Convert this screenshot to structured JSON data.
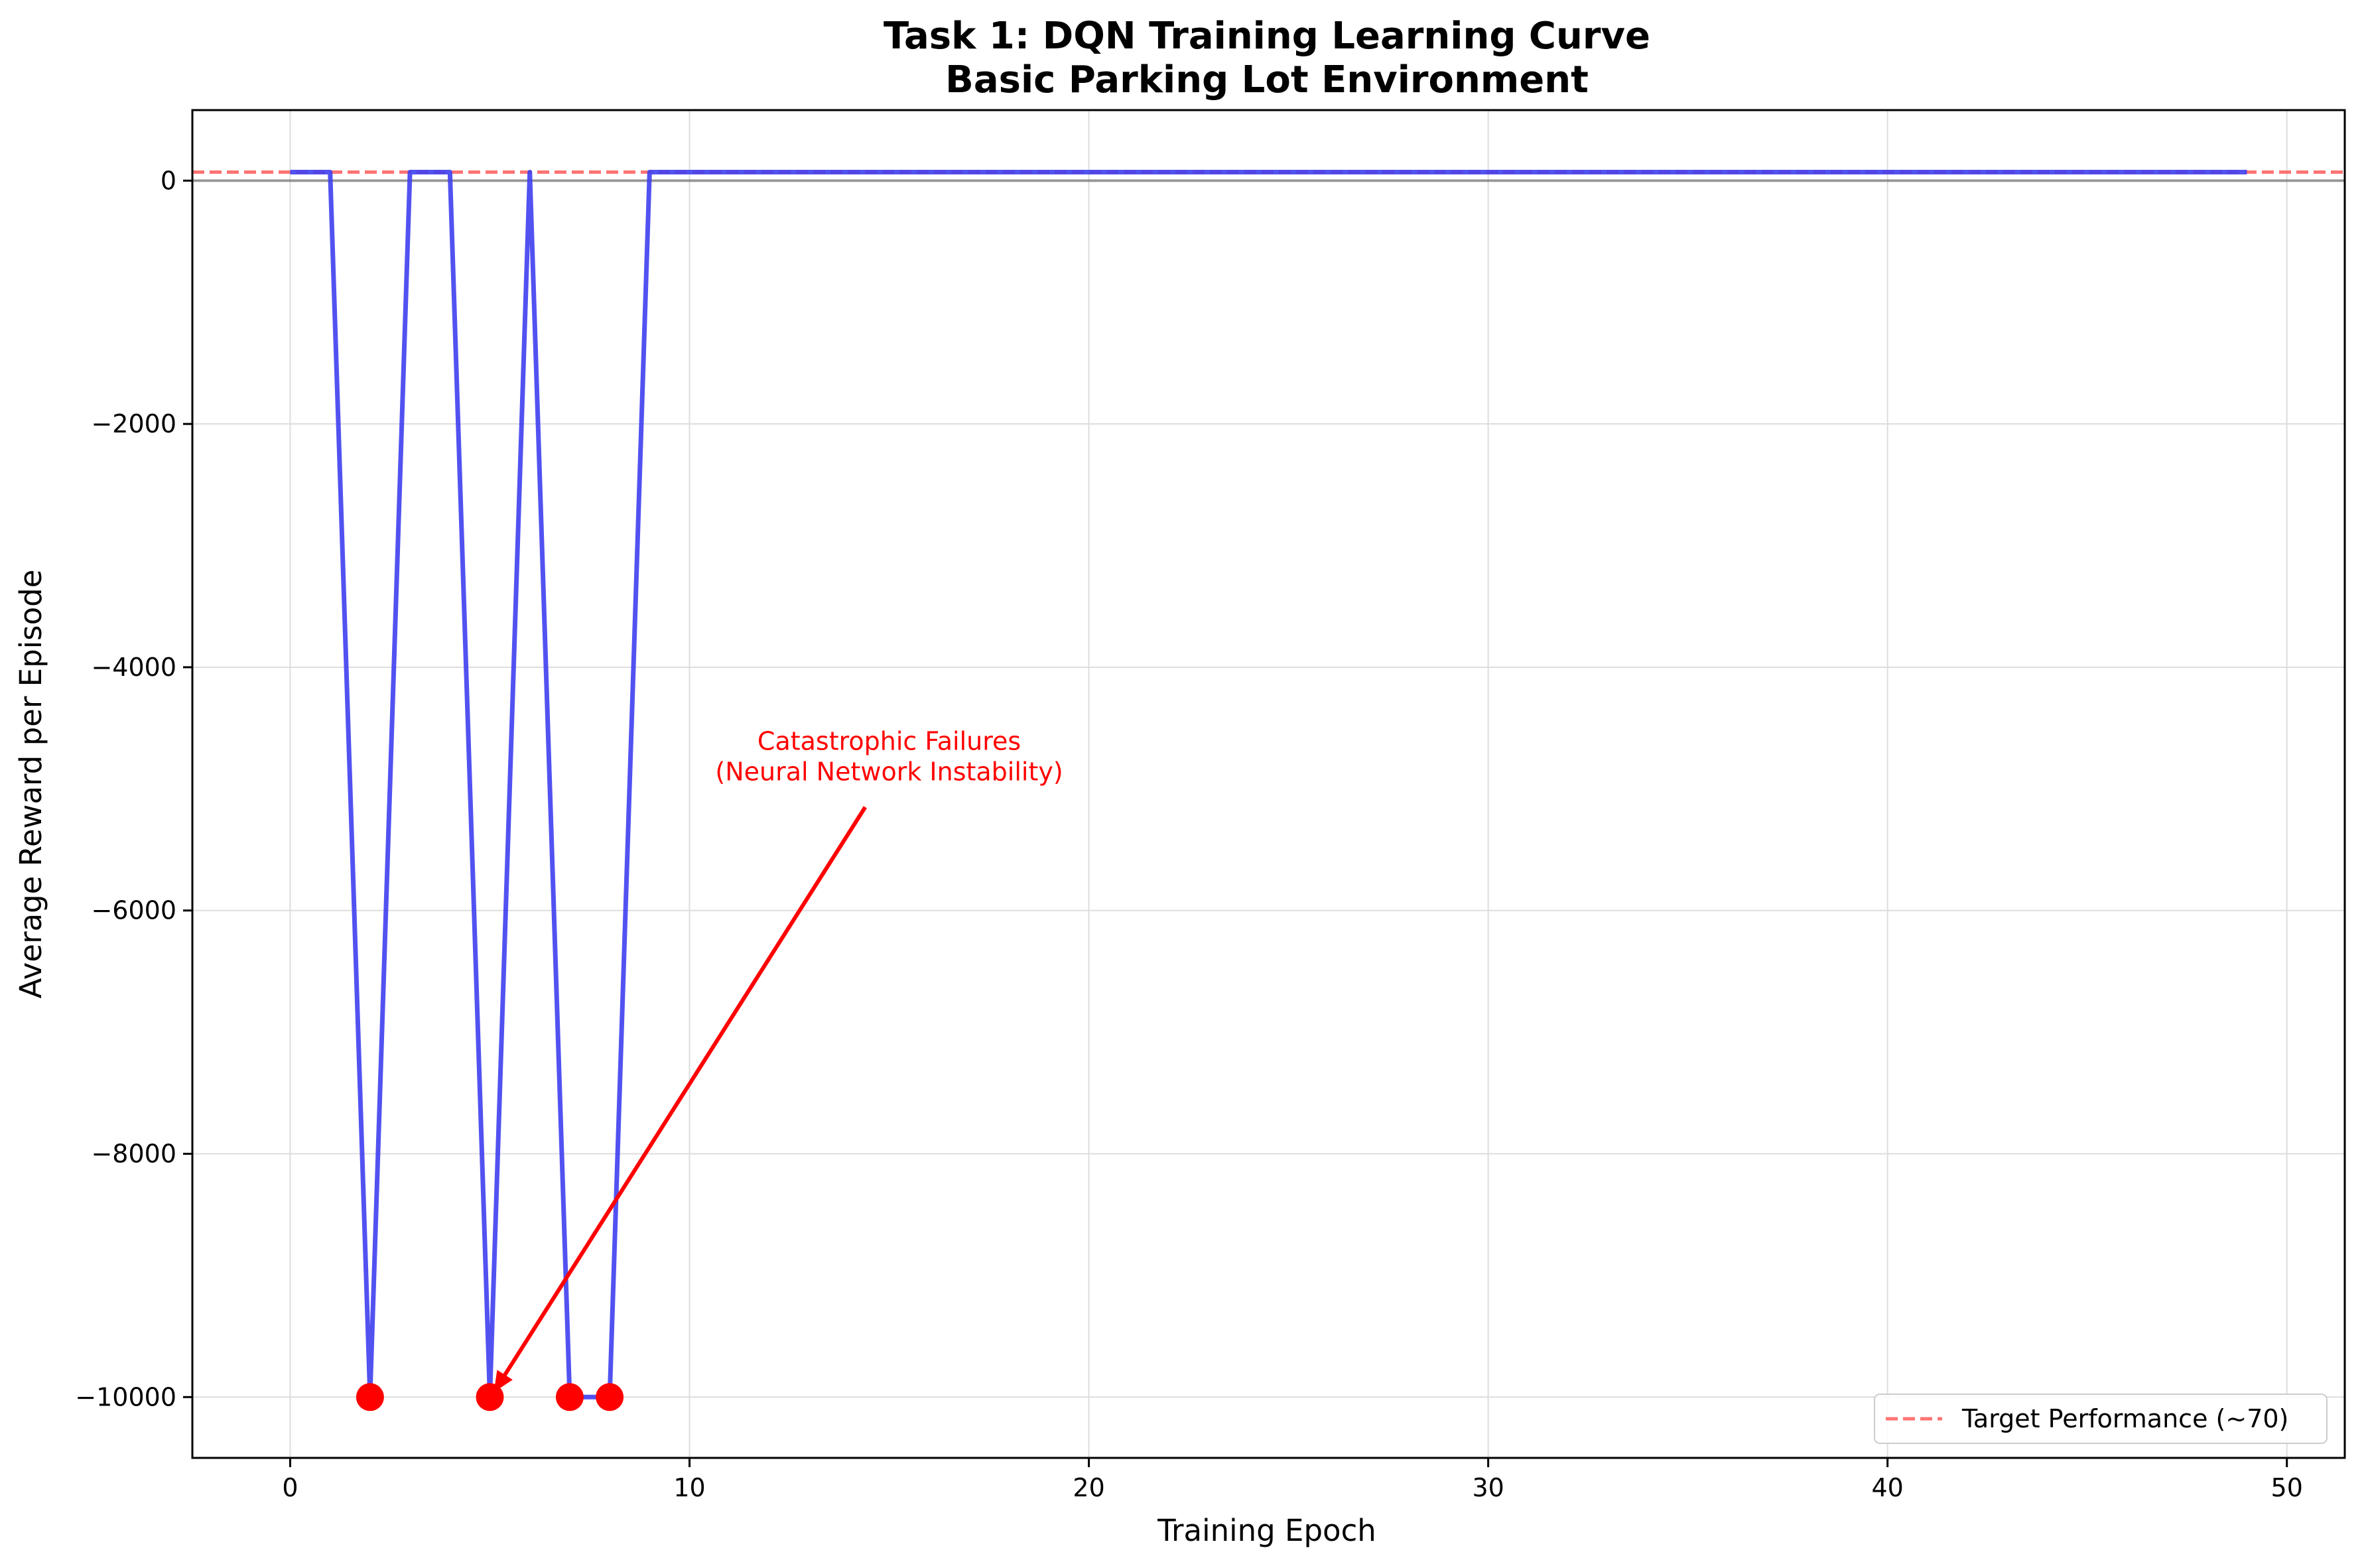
{
  "chart_data": {
    "type": "line",
    "title": [
      "Task 1: DQN Training Learning Curve",
      "Basic Parking Lot Environment"
    ],
    "xlabel": "Training Epoch",
    "ylabel": "Average Reward per Episode",
    "xlim": [
      -2.45,
      51.45
    ],
    "ylim": [
      -10500,
      580
    ],
    "xticks": [
      0,
      10,
      20,
      30,
      40,
      50
    ],
    "yticks": [
      0,
      -2000,
      -4000,
      -6000,
      -8000,
      -10000
    ],
    "xtick_labels": [
      "0",
      "10",
      "20",
      "30",
      "40",
      "50"
    ],
    "ytick_labels": [
      "0",
      "−2000",
      "−4000",
      "−6000",
      "−8000",
      "−10000"
    ],
    "grid": true,
    "series": [
      {
        "color": "#3f3ff0",
        "x": [
          0,
          1,
          2,
          3,
          4,
          5,
          6,
          7,
          8,
          9,
          10,
          11,
          12,
          13,
          14,
          15,
          16,
          17,
          18,
          19,
          20,
          21,
          22,
          23,
          24,
          25,
          26,
          27,
          28,
          29,
          30,
          31,
          32,
          33,
          34,
          35,
          36,
          37,
          38,
          39,
          40,
          41,
          42,
          43,
          44,
          45,
          46,
          47,
          48,
          49
        ],
        "values": [
          70,
          70,
          -10000,
          70,
          70,
          -10000,
          70,
          -10000,
          -10000,
          70,
          70,
          70,
          70,
          70,
          70,
          70,
          70,
          70,
          70,
          70,
          70,
          70,
          70,
          70,
          70,
          70,
          70,
          70,
          70,
          70,
          70,
          70,
          70,
          70,
          70,
          70,
          70,
          70,
          70,
          70,
          70,
          70,
          70,
          70,
          70,
          70,
          70,
          70,
          70,
          70
        ]
      }
    ],
    "failure_points": {
      "color": "#ff0000",
      "x": [
        2,
        5,
        7,
        8
      ],
      "values": [
        -10000,
        -10000,
        -10000,
        -10000
      ]
    },
    "reference_lines": [
      {
        "y": 70,
        "style": "dashed",
        "color": "#ff5a5a",
        "label": "Target Performance (~70)"
      },
      {
        "y": 0,
        "style": "solid",
        "color": "#000000"
      }
    ],
    "annotation": {
      "lines": [
        "Catastrophic Failures",
        "(Neural Network Instability)"
      ],
      "color": "#ff0000",
      "text_x": 15,
      "text_y": -4800,
      "arrow_start_x": 14.4,
      "arrow_start_y": -5150,
      "arrow_target_x": 5.1,
      "arrow_target_y": -9960
    },
    "legend": {
      "position": "lower-right",
      "entries": [
        "Target Performance (~70)"
      ]
    }
  }
}
